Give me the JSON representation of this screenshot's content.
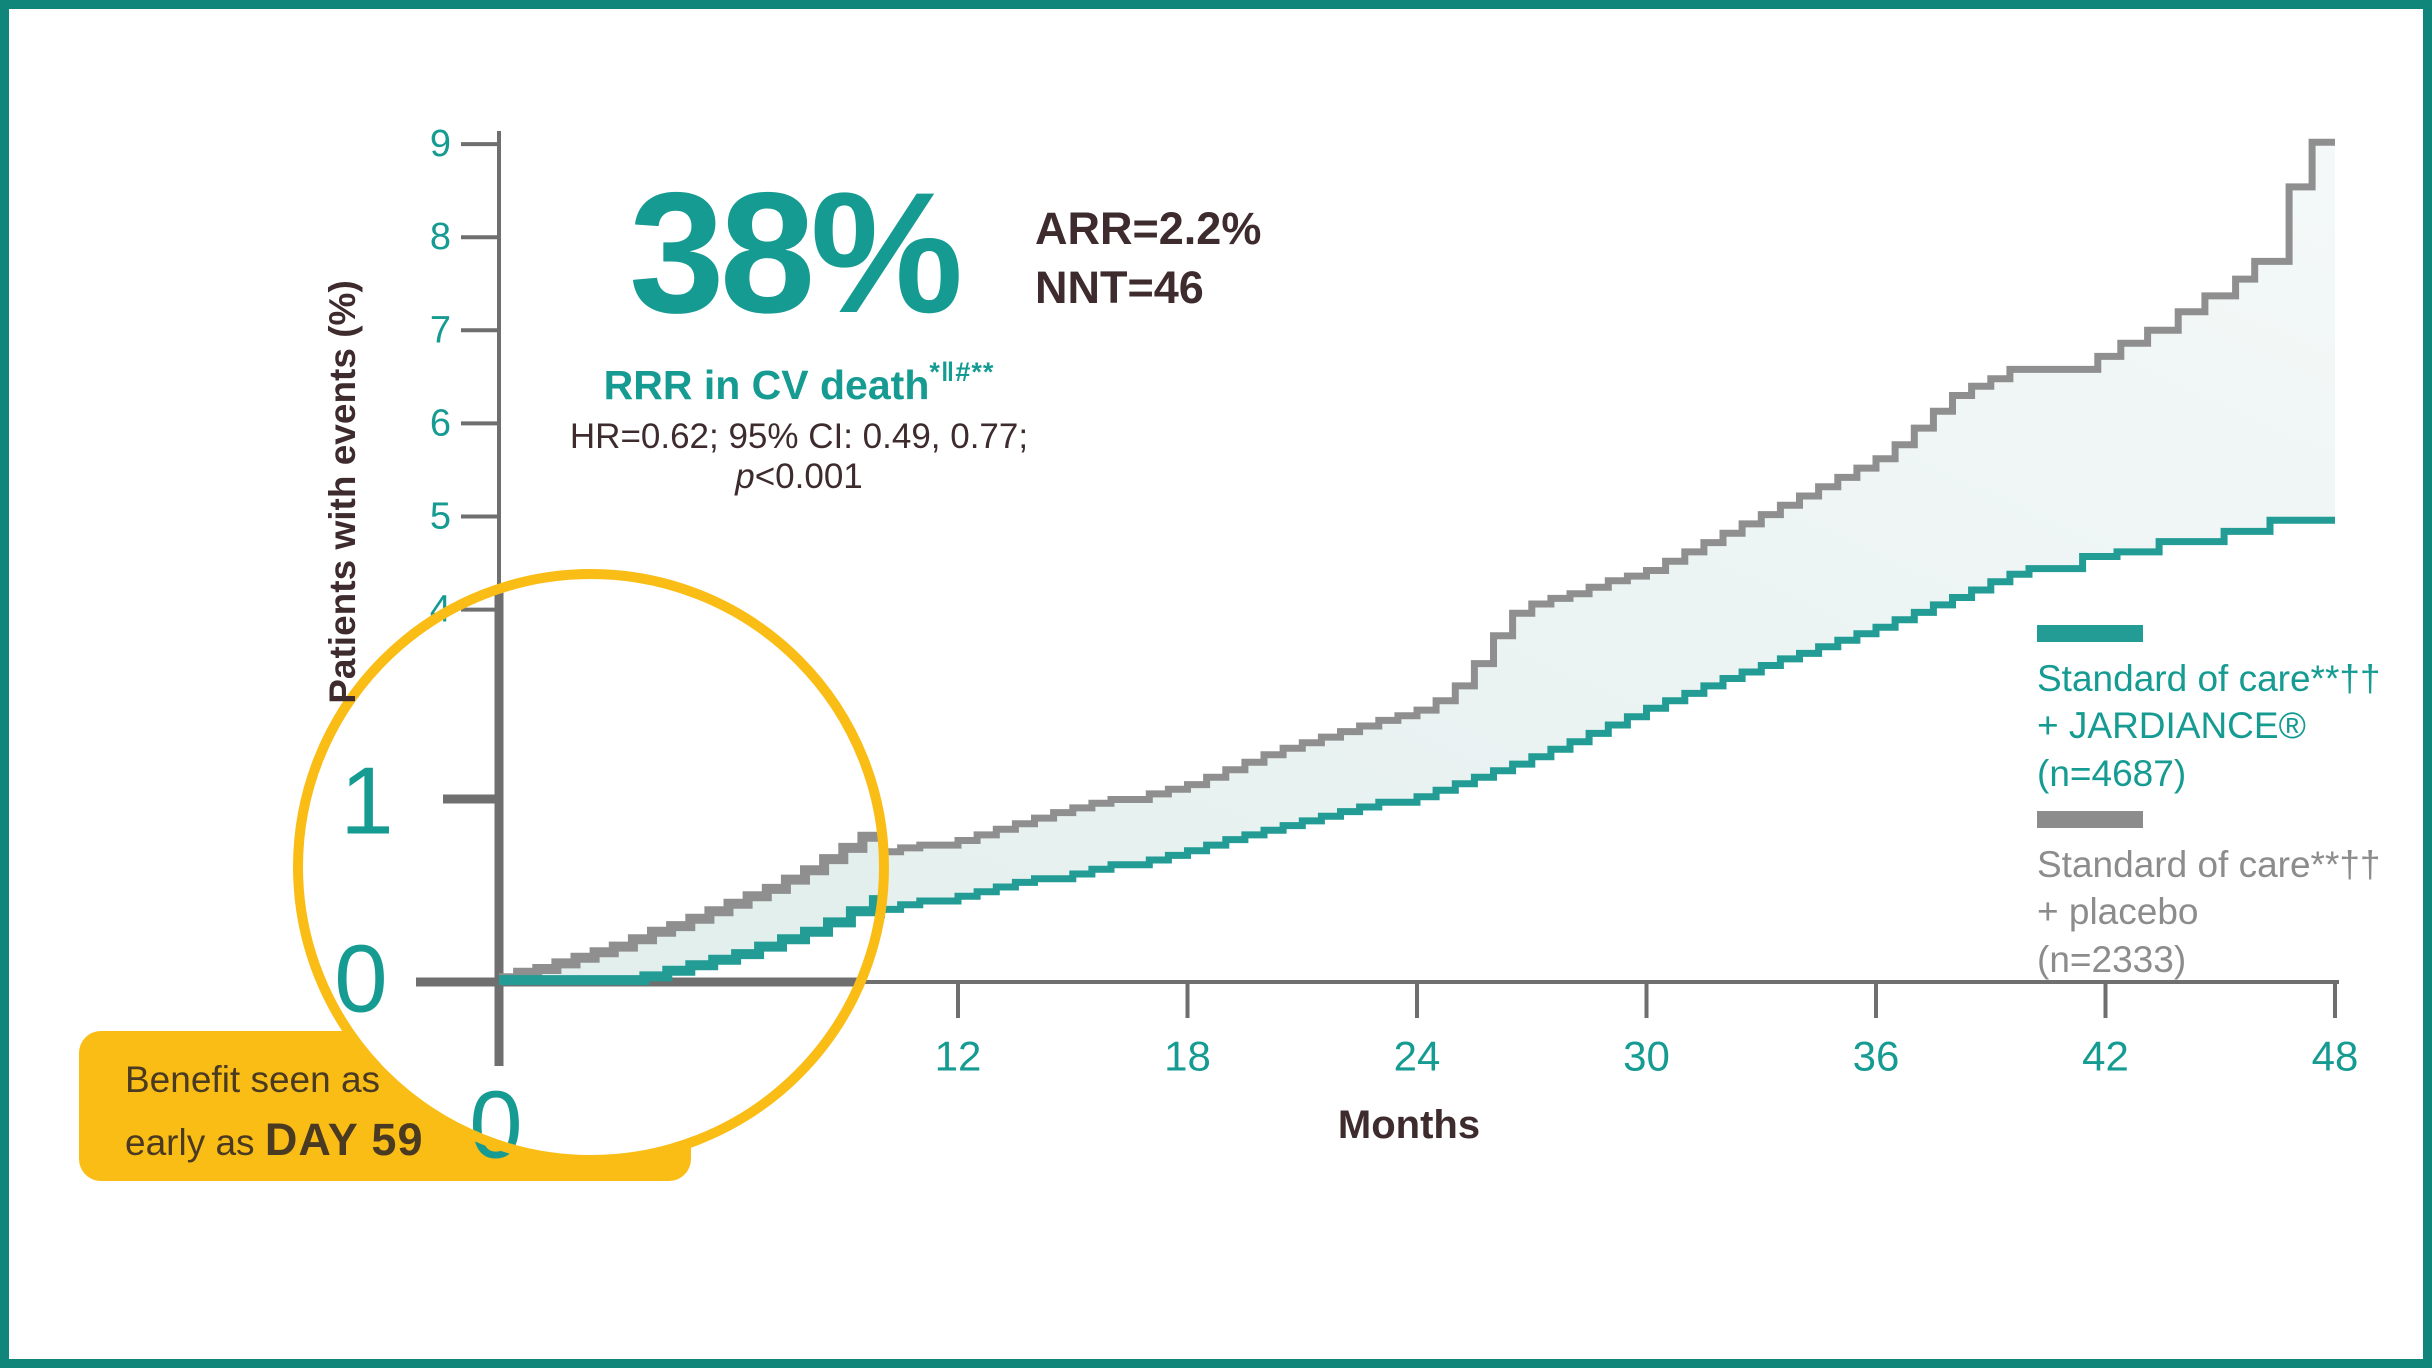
{
  "colors": {
    "teal_text": "#169b92",
    "teal_curve": "#229c94",
    "gray_curve": "#8f8f8f",
    "gray_text": "#8c8c8c",
    "axis_gray": "#6f6f6f",
    "dark_text": "#3e2b2e",
    "callout_text": "#4b3a22",
    "yellow": "#fabd16",
    "area_fill_start": "#e2efed",
    "area_fill_end": "#f4f8f8",
    "frame_border": "#0f8679",
    "background": "#ffffff"
  },
  "stats": {
    "rrr_value": "38%",
    "rrr_label": "RRR in CV death",
    "rrr_superscript": "*‖#**",
    "hr_line": "HR=0.62; 95% CI: 0.49, 0.77;",
    "p_italic": "p",
    "p_rest": "<0.001",
    "arr": "ARR=2.2%",
    "nnt": "NNT=46"
  },
  "callout": {
    "line1": "Benefit seen as",
    "line2_prefix": "early as ",
    "line2_bold": "DAY 59"
  },
  "legend": {
    "jardiance": {
      "lines": [
        "Standard of care**††",
        "+ JARDIANCE®",
        "(n=4687)"
      ]
    },
    "placebo": {
      "lines": [
        "Standard of care**††",
        "+ placebo",
        "(n=2333)"
      ]
    }
  },
  "chart_data": {
    "type": "line",
    "subtype": "kaplan-meier-step",
    "title": "38% RRR in CV death",
    "xlabel": "Months",
    "ylabel": "Patients with events (%)",
    "xlim": [
      0,
      48
    ],
    "ylim": [
      0,
      9
    ],
    "x_ticks": [
      12,
      18,
      24,
      30,
      36,
      42,
      48
    ],
    "y_ticks": [
      9,
      8,
      7,
      6,
      5,
      4
    ],
    "grid": false,
    "legend_position": "right",
    "annotation": "Benefit seen as early as DAY 59",
    "series": [
      {
        "name": "Standard of care + placebo (n=2333)",
        "color": "#8f8f8f",
        "points": [
          [
            0,
            0
          ],
          [
            0.5,
            0.03
          ],
          [
            1,
            0.06
          ],
          [
            1.5,
            0.1
          ],
          [
            2,
            0.14
          ],
          [
            2.5,
            0.18
          ],
          [
            3,
            0.22
          ],
          [
            3.5,
            0.27
          ],
          [
            4,
            0.33
          ],
          [
            4.5,
            0.4
          ],
          [
            5,
            0.47
          ],
          [
            5.5,
            0.55
          ],
          [
            6,
            0.63
          ],
          [
            6.5,
            0.72
          ],
          [
            7,
            0.82
          ],
          [
            7.5,
            0.92
          ],
          [
            8,
            1.02
          ],
          [
            8.5,
            1.12
          ],
          [
            9,
            1.22
          ],
          [
            9.5,
            1.32
          ],
          [
            10,
            1.4
          ],
          [
            10.5,
            1.44
          ],
          [
            11,
            1.47
          ],
          [
            12,
            1.52
          ],
          [
            12.5,
            1.58
          ],
          [
            13,
            1.64
          ],
          [
            13.5,
            1.7
          ],
          [
            14,
            1.76
          ],
          [
            14.5,
            1.82
          ],
          [
            15,
            1.87
          ],
          [
            15.5,
            1.92
          ],
          [
            16,
            1.96
          ],
          [
            17,
            2.02
          ],
          [
            17.5,
            2.07
          ],
          [
            18,
            2.12
          ],
          [
            18.5,
            2.2
          ],
          [
            19,
            2.28
          ],
          [
            19.5,
            2.36
          ],
          [
            20,
            2.44
          ],
          [
            20.5,
            2.51
          ],
          [
            21,
            2.57
          ],
          [
            21.5,
            2.63
          ],
          [
            22,
            2.69
          ],
          [
            22.5,
            2.75
          ],
          [
            23,
            2.81
          ],
          [
            23.5,
            2.86
          ],
          [
            24,
            2.92
          ],
          [
            24.5,
            3.02
          ],
          [
            25,
            3.18
          ],
          [
            25.5,
            3.42
          ],
          [
            26,
            3.72
          ],
          [
            26.5,
            3.96
          ],
          [
            27,
            4.06
          ],
          [
            27.5,
            4.12
          ],
          [
            28,
            4.17
          ],
          [
            28.5,
            4.24
          ],
          [
            29,
            4.31
          ],
          [
            29.5,
            4.36
          ],
          [
            30,
            4.42
          ],
          [
            30.5,
            4.52
          ],
          [
            31,
            4.62
          ],
          [
            31.5,
            4.72
          ],
          [
            32,
            4.82
          ],
          [
            32.5,
            4.92
          ],
          [
            33,
            5.02
          ],
          [
            33.5,
            5.12
          ],
          [
            34,
            5.22
          ],
          [
            34.5,
            5.32
          ],
          [
            35,
            5.42
          ],
          [
            35.5,
            5.52
          ],
          [
            36,
            5.62
          ],
          [
            36.5,
            5.77
          ],
          [
            37,
            5.95
          ],
          [
            37.5,
            6.13
          ],
          [
            38,
            6.3
          ],
          [
            38.5,
            6.4
          ],
          [
            39,
            6.48
          ],
          [
            39.5,
            6.58
          ],
          [
            41.8,
            6.72
          ],
          [
            42.4,
            6.86
          ],
          [
            43.1,
            7.0
          ],
          [
            43.9,
            7.2
          ],
          [
            44.6,
            7.37
          ],
          [
            45.4,
            7.55
          ],
          [
            45.9,
            7.74
          ],
          [
            46.8,
            8.54
          ],
          [
            47.4,
            9.02
          ],
          [
            48,
            9.02
          ]
        ]
      },
      {
        "name": "Standard of care + JARDIANCE (n=4687)",
        "color": "#229c94",
        "points": [
          [
            0,
            0
          ],
          [
            1,
            0.02
          ],
          [
            2,
            0.05
          ],
          [
            2.5,
            0.08
          ],
          [
            3,
            0.11
          ],
          [
            3.5,
            0.15
          ],
          [
            4,
            0.19
          ],
          [
            4.5,
            0.23
          ],
          [
            5,
            0.27
          ],
          [
            5.5,
            0.32
          ],
          [
            6,
            0.36
          ],
          [
            6.5,
            0.41
          ],
          [
            7,
            0.46
          ],
          [
            7.5,
            0.51
          ],
          [
            8,
            0.56
          ],
          [
            8.5,
            0.61
          ],
          [
            9,
            0.66
          ],
          [
            9.5,
            0.72
          ],
          [
            10,
            0.78
          ],
          [
            10.5,
            0.83
          ],
          [
            11,
            0.87
          ],
          [
            12,
            0.92
          ],
          [
            12.5,
            0.97
          ],
          [
            13,
            1.02
          ],
          [
            13.5,
            1.07
          ],
          [
            14,
            1.11
          ],
          [
            15,
            1.16
          ],
          [
            15.5,
            1.21
          ],
          [
            16,
            1.26
          ],
          [
            17,
            1.31
          ],
          [
            17.5,
            1.36
          ],
          [
            18,
            1.41
          ],
          [
            18.5,
            1.47
          ],
          [
            19,
            1.53
          ],
          [
            19.5,
            1.58
          ],
          [
            20,
            1.63
          ],
          [
            20.5,
            1.68
          ],
          [
            21,
            1.73
          ],
          [
            21.5,
            1.78
          ],
          [
            22,
            1.83
          ],
          [
            22.5,
            1.88
          ],
          [
            23,
            1.93
          ],
          [
            24,
            1.99
          ],
          [
            24.5,
            2.06
          ],
          [
            25,
            2.13
          ],
          [
            25.5,
            2.2
          ],
          [
            26,
            2.27
          ],
          [
            26.5,
            2.34
          ],
          [
            27,
            2.42
          ],
          [
            27.5,
            2.5
          ],
          [
            28,
            2.58
          ],
          [
            28.5,
            2.67
          ],
          [
            29,
            2.76
          ],
          [
            29.5,
            2.85
          ],
          [
            30,
            2.94
          ],
          [
            30.5,
            3.02
          ],
          [
            31,
            3.1
          ],
          [
            31.5,
            3.18
          ],
          [
            32,
            3.26
          ],
          [
            32.5,
            3.33
          ],
          [
            33,
            3.4
          ],
          [
            33.5,
            3.47
          ],
          [
            34,
            3.53
          ],
          [
            34.5,
            3.6
          ],
          [
            35,
            3.67
          ],
          [
            35.5,
            3.74
          ],
          [
            36,
            3.81
          ],
          [
            36.5,
            3.89
          ],
          [
            37,
            3.97
          ],
          [
            37.5,
            4.05
          ],
          [
            38,
            4.13
          ],
          [
            38.5,
            4.21
          ],
          [
            39,
            4.3
          ],
          [
            39.5,
            4.38
          ],
          [
            40,
            4.44
          ],
          [
            41.4,
            4.57
          ],
          [
            42.3,
            4.62
          ],
          [
            43.4,
            4.73
          ],
          [
            45.1,
            4.84
          ],
          [
            46.3,
            4.96
          ],
          [
            48,
            4.96
          ]
        ]
      }
    ],
    "magnifier": {
      "description": "2x zoom circle over months 0-5 near origin",
      "y_tick_labels": [
        "1",
        "0"
      ],
      "x_tick_labels": [
        "0"
      ],
      "series": [
        {
          "name": "placebo magnified",
          "color": "#8f8f8f",
          "points": [
            [
              0,
              0.02
            ],
            [
              0.25,
              0.05
            ],
            [
              0.5,
              0.07
            ],
            [
              0.75,
              0.1
            ],
            [
              1,
              0.13
            ],
            [
              1.25,
              0.16
            ],
            [
              1.5,
              0.19
            ],
            [
              1.75,
              0.23
            ],
            [
              2,
              0.27
            ],
            [
              2.25,
              0.3
            ],
            [
              2.5,
              0.34
            ],
            [
              2.75,
              0.38
            ],
            [
              3,
              0.42
            ],
            [
              3.25,
              0.46
            ],
            [
              3.5,
              0.5
            ],
            [
              3.75,
              0.55
            ],
            [
              4,
              0.6
            ],
            [
              4.25,
              0.66
            ],
            [
              4.5,
              0.72
            ],
            [
              4.75,
              0.78
            ],
            [
              5.1,
              0.84
            ]
          ]
        },
        {
          "name": "jardiance magnified",
          "color": "#229c94",
          "points": [
            [
              0,
              0.01
            ],
            [
              1.9,
              0.03
            ],
            [
              2.2,
              0.06
            ],
            [
              2.5,
              0.09
            ],
            [
              2.8,
              0.12
            ],
            [
              3.1,
              0.15
            ],
            [
              3.4,
              0.19
            ],
            [
              3.7,
              0.23
            ],
            [
              4,
              0.27
            ],
            [
              4.3,
              0.32
            ],
            [
              4.6,
              0.38
            ],
            [
              4.9,
              0.44
            ],
            [
              5.1,
              0.46
            ]
          ]
        }
      ]
    }
  }
}
